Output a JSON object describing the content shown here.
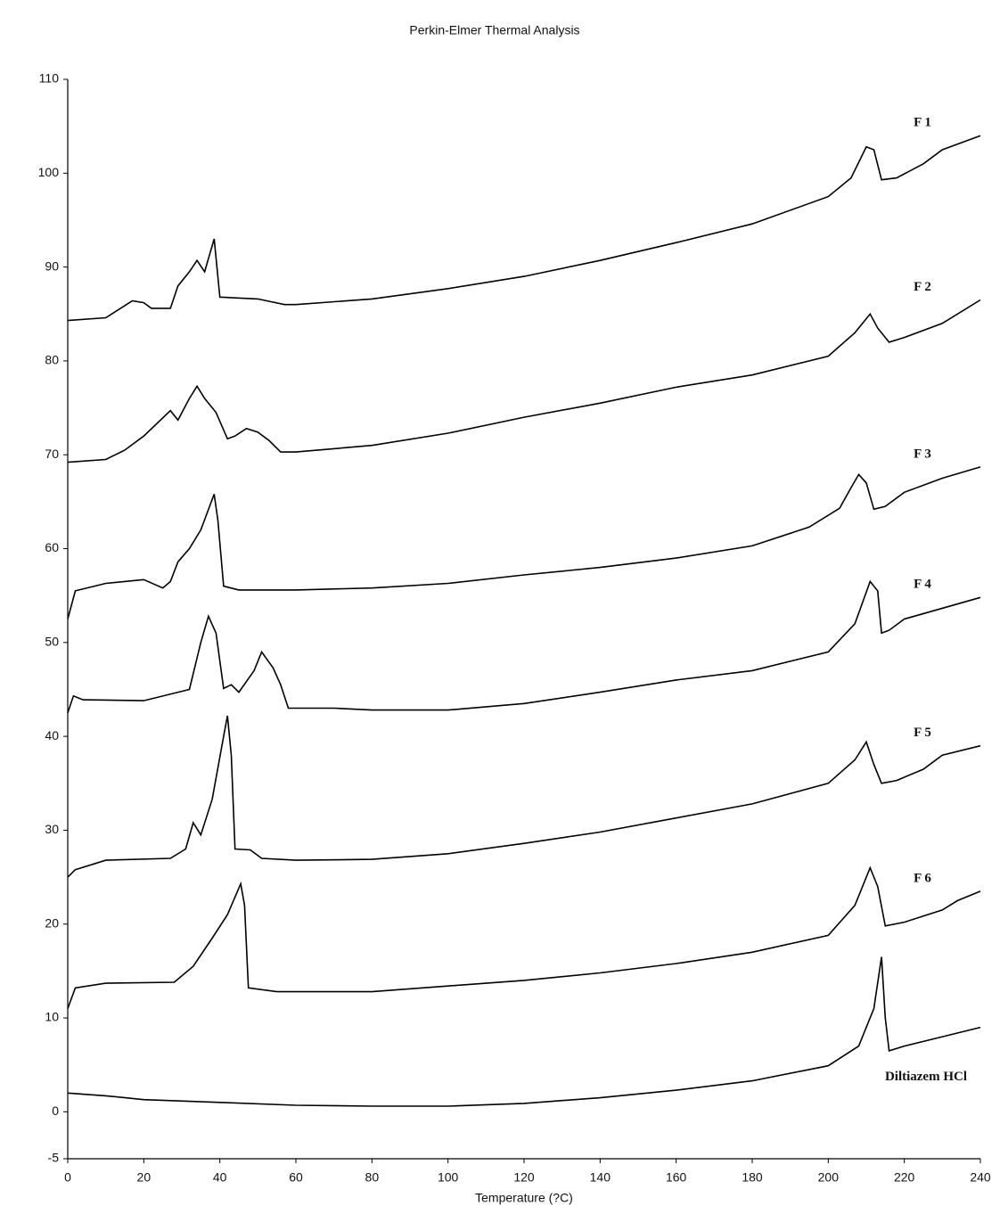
{
  "chart_data": {
    "type": "line",
    "title": "Perkin-Elmer Thermal Analysis",
    "x_label": "Temperature (?C)",
    "xlim": [
      0,
      240
    ],
    "xticks": [
      0,
      20,
      40,
      60,
      80,
      100,
      120,
      140,
      160,
      180,
      200,
      220,
      240
    ],
    "ylim": [
      -5,
      110
    ],
    "yticks": [
      -5,
      0,
      10,
      20,
      30,
      40,
      50,
      60,
      70,
      80,
      90,
      100,
      110
    ],
    "grid": false,
    "series": [
      {
        "name": "F 1",
        "color": "#000000",
        "x": [
          0,
          10,
          17,
          20,
          22,
          27,
          29,
          32,
          34,
          36,
          38.5,
          40,
          50,
          57,
          60,
          80,
          100,
          120,
          140,
          160,
          180,
          200,
          206,
          210,
          212,
          214,
          218,
          225,
          230,
          240
        ],
        "values": [
          84.3,
          84.6,
          86.4,
          86.2,
          85.6,
          85.6,
          88,
          89.5,
          90.7,
          89.5,
          93,
          86.8,
          86.6,
          86,
          86,
          86.6,
          87.7,
          89,
          90.7,
          92.6,
          94.6,
          97.5,
          99.5,
          102.8,
          102.5,
          99.3,
          99.5,
          101,
          102.5,
          104
        ]
      },
      {
        "name": "F 2",
        "color": "#000000",
        "x": [
          0,
          10,
          15,
          20,
          27,
          29,
          32,
          34,
          36,
          39,
          42,
          44,
          47,
          50,
          53,
          56,
          60,
          80,
          100,
          120,
          140,
          160,
          180,
          200,
          207,
          211,
          213,
          216,
          220,
          230,
          240
        ],
        "values": [
          69.2,
          69.5,
          70.5,
          72,
          74.7,
          73.7,
          76,
          77.3,
          76,
          74.5,
          71.7,
          72,
          72.8,
          72.4,
          71.5,
          70.3,
          70.3,
          71,
          72.3,
          74,
          75.5,
          77.2,
          78.5,
          80.5,
          83,
          85,
          83.5,
          82,
          82.5,
          84,
          86.5
        ]
      },
      {
        "name": "F 3",
        "color": "#000000",
        "x": [
          0,
          2,
          10,
          20,
          25,
          27,
          29,
          32,
          35,
          38.5,
          39.5,
          41,
          45,
          60,
          80,
          100,
          120,
          140,
          160,
          180,
          195,
          203,
          206,
          208,
          210,
          212,
          215,
          220,
          230,
          240
        ],
        "values": [
          52.5,
          55.5,
          56.3,
          56.7,
          55.8,
          56.5,
          58.6,
          60,
          62,
          65.8,
          63,
          56,
          55.6,
          55.6,
          55.8,
          56.3,
          57.2,
          58,
          59,
          60.3,
          62.3,
          64.3,
          66.5,
          67.9,
          67,
          64.2,
          64.5,
          66,
          67.5,
          68.7
        ]
      },
      {
        "name": "F 4",
        "color": "#000000",
        "x": [
          0,
          1.5,
          4,
          20,
          32,
          35,
          37,
          39,
          41,
          43,
          45,
          49,
          51,
          54,
          56,
          58,
          70,
          80,
          100,
          120,
          140,
          160,
          180,
          200,
          207,
          211,
          213,
          214,
          216,
          220,
          240
        ],
        "values": [
          42.5,
          44.3,
          43.9,
          43.8,
          45,
          50,
          52.8,
          51,
          45.1,
          45.5,
          44.7,
          47,
          49,
          47.3,
          45.5,
          43,
          43,
          42.8,
          42.8,
          43.5,
          44.7,
          46,
          47,
          49,
          52,
          56.5,
          55.5,
          51,
          51.3,
          52.5,
          54.8
        ]
      },
      {
        "name": "F 5",
        "color": "#000000",
        "x": [
          0,
          2,
          10,
          27,
          31,
          33,
          35,
          38,
          41,
          42,
          43,
          44,
          48,
          51,
          60,
          80,
          100,
          120,
          140,
          160,
          180,
          200,
          207,
          210,
          212,
          214,
          218,
          225,
          230,
          240
        ],
        "values": [
          25,
          25.8,
          26.8,
          27,
          28,
          30.8,
          29.5,
          33.3,
          40,
          42.2,
          38,
          28,
          27.9,
          27,
          26.8,
          26.9,
          27.5,
          28.6,
          29.8,
          31.3,
          32.8,
          35,
          37.5,
          39.4,
          37,
          35,
          35.3,
          36.5,
          38,
          39
        ]
      },
      {
        "name": "F 6",
        "color": "#000000",
        "x": [
          0,
          2,
          10,
          28,
          33,
          38,
          42,
          45.5,
          46.5,
          47.5,
          55,
          80,
          100,
          120,
          140,
          160,
          180,
          200,
          207,
          211,
          213,
          215,
          220,
          230,
          234,
          240
        ],
        "values": [
          11,
          13.2,
          13.7,
          13.8,
          15.5,
          18.5,
          21,
          24.3,
          22,
          13.2,
          12.8,
          12.8,
          13.4,
          14,
          14.8,
          15.8,
          17,
          18.8,
          22,
          26,
          24,
          19.8,
          20.2,
          21.5,
          22.5,
          23.5
        ]
      },
      {
        "name": "Diltiazem HCl",
        "color": "#000000",
        "x": [
          0,
          10,
          20,
          40,
          60,
          80,
          100,
          120,
          140,
          160,
          180,
          200,
          208,
          212,
          214,
          215,
          216,
          220,
          240
        ],
        "values": [
          2,
          1.7,
          1.3,
          1,
          0.7,
          0.6,
          0.6,
          0.9,
          1.5,
          2.3,
          3.3,
          4.9,
          7,
          11,
          16.5,
          10,
          6.5,
          7,
          9
        ]
      }
    ]
  }
}
